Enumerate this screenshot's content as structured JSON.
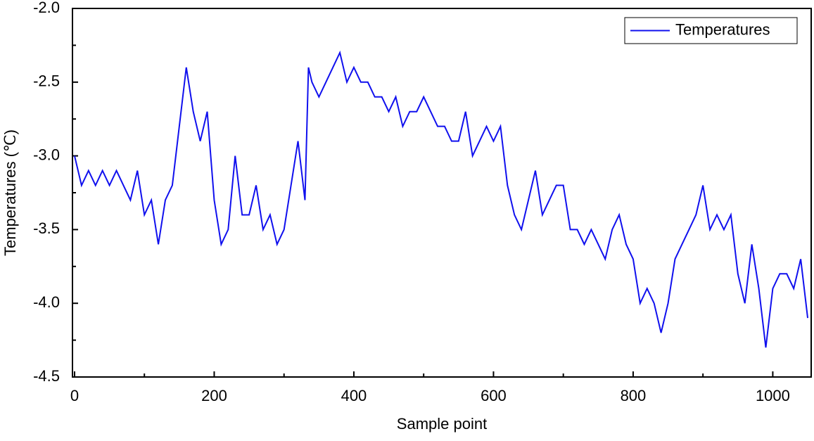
{
  "chart_data": {
    "type": "line",
    "xlabel": "Sample point",
    "ylabel": "Temperatures (℃)",
    "x": [
      0,
      10,
      20,
      30,
      40,
      50,
      60,
      70,
      80,
      90,
      100,
      110,
      120,
      130,
      140,
      150,
      160,
      170,
      180,
      190,
      200,
      210,
      220,
      230,
      240,
      250,
      260,
      270,
      280,
      290,
      300,
      310,
      320,
      330,
      335,
      340,
      350,
      360,
      370,
      380,
      390,
      400,
      410,
      420,
      430,
      440,
      450,
      460,
      470,
      480,
      490,
      500,
      510,
      520,
      530,
      540,
      550,
      560,
      570,
      580,
      590,
      600,
      610,
      620,
      630,
      640,
      650,
      660,
      670,
      680,
      690,
      700,
      710,
      720,
      730,
      740,
      750,
      760,
      770,
      780,
      790,
      800,
      810,
      820,
      830,
      840,
      850,
      860,
      870,
      880,
      890,
      900,
      910,
      920,
      930,
      940,
      950,
      960,
      970,
      980,
      990,
      1000,
      1010,
      1020,
      1030,
      1040,
      1050
    ],
    "series": [
      {
        "name": "Temperatures",
        "color": "#1010ee",
        "values": [
          -3.0,
          -3.2,
          -3.1,
          -3.2,
          -3.1,
          -3.2,
          -3.1,
          -3.2,
          -3.3,
          -3.1,
          -3.4,
          -3.3,
          -3.6,
          -3.3,
          -3.2,
          -2.8,
          -2.4,
          -2.7,
          -2.9,
          -2.7,
          -3.3,
          -3.6,
          -3.5,
          -3.0,
          -3.4,
          -3.4,
          -3.2,
          -3.5,
          -3.4,
          -3.6,
          -3.5,
          -3.2,
          -2.9,
          -3.3,
          -2.4,
          -2.5,
          -2.6,
          -2.5,
          -2.4,
          -2.3,
          -2.5,
          -2.4,
          -2.5,
          -2.5,
          -2.6,
          -2.6,
          -2.7,
          -2.6,
          -2.8,
          -2.7,
          -2.7,
          -2.6,
          -2.7,
          -2.8,
          -2.8,
          -2.9,
          -2.9,
          -2.7,
          -3.0,
          -2.9,
          -2.8,
          -2.9,
          -2.8,
          -3.2,
          -3.4,
          -3.5,
          -3.3,
          -3.1,
          -3.4,
          -3.3,
          -3.2,
          -3.2,
          -3.5,
          -3.5,
          -3.6,
          -3.5,
          -3.6,
          -3.7,
          -3.5,
          -3.4,
          -3.6,
          -3.7,
          -4.0,
          -3.9,
          -4.0,
          -4.2,
          -4.0,
          -3.7,
          -3.6,
          -3.5,
          -3.4,
          -3.2,
          -3.5,
          -3.4,
          -3.5,
          -3.4,
          -3.8,
          -4.0,
          -3.6,
          -3.9,
          -4.3,
          -3.9,
          -3.8,
          -3.8,
          -3.9,
          -3.7,
          -4.1
        ]
      }
    ],
    "xlim": [
      -3,
      1055
    ],
    "xticks": [
      0,
      200,
      400,
      600,
      800,
      1000
    ],
    "xminorticks": [
      100,
      300,
      500,
      700,
      900
    ],
    "ylim": [
      -4.5,
      -2.0
    ],
    "yticks": [
      {
        "value": -4.5,
        "label": "-4.5"
      },
      {
        "value": -4,
        "label": "-4.0"
      },
      {
        "value": -3.5,
        "label": "-3.5"
      },
      {
        "value": -3,
        "label": "-3.0"
      },
      {
        "value": -2.5,
        "label": "-2.5"
      },
      {
        "value": -2,
        "label": "-2.0"
      }
    ],
    "yminorticks": [
      -4.25,
      -3.75,
      -3.25,
      -2.75,
      -2.25
    ],
    "legend": "upper right"
  }
}
